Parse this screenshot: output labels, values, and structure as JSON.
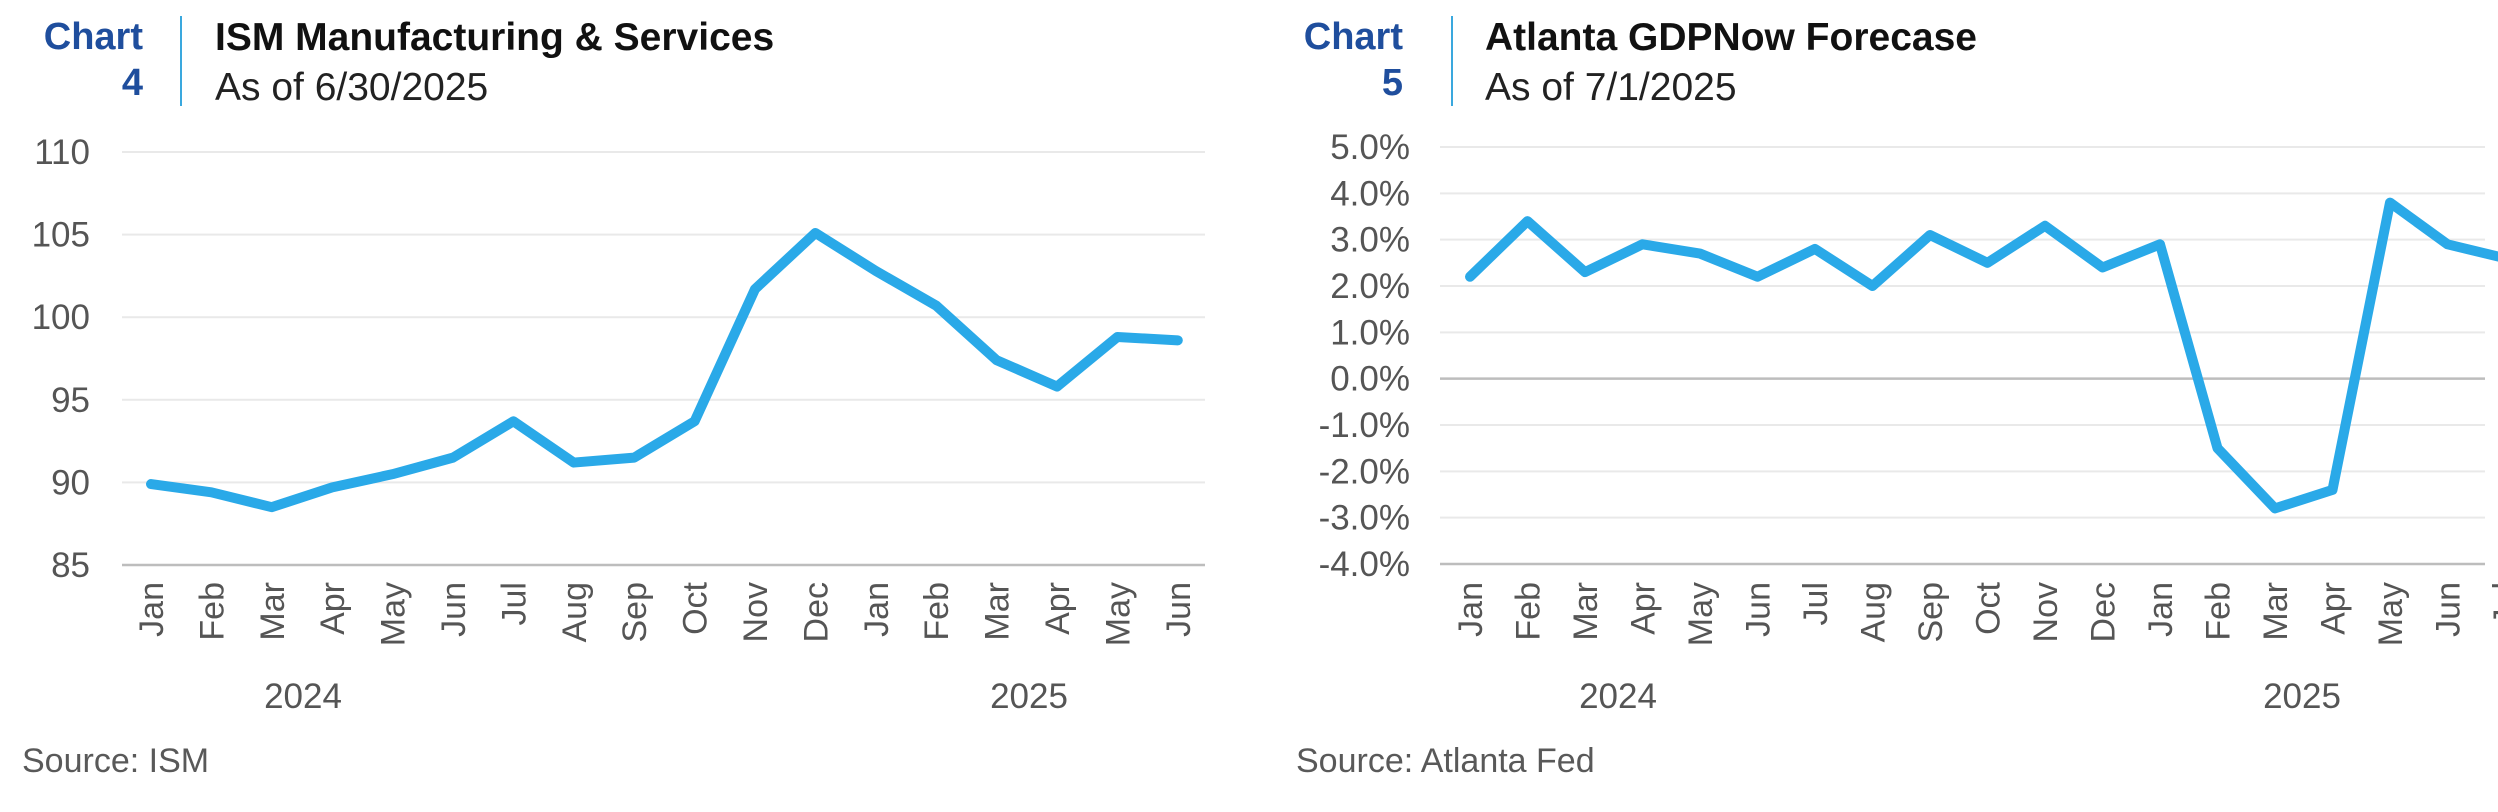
{
  "left": {
    "chart_label_word": "Chart",
    "chart_label_num": "4",
    "title": "ISM Manufacturing & Services",
    "subtitle": "As of 6/30/2025",
    "source": "Source: ISM"
  },
  "right": {
    "chart_label_word": "Chart",
    "chart_label_num": "5",
    "title": "Atlanta GDPNow Forecase",
    "subtitle": "As of 7/1/2025",
    "source": "Source: Atlanta Fed"
  },
  "colors": {
    "line": "#2aa9e8",
    "label": "#1f4e9d",
    "grid": "#e9e9e9",
    "axis": "#bdbdbd"
  },
  "chart_data": [
    {
      "type": "line",
      "title": "ISM Manufacturing & Services",
      "categories": [
        "Jan",
        "Feb",
        "Mar",
        "Apr",
        "May",
        "Jun",
        "Jul",
        "Aug",
        "Sep",
        "Oct",
        "Nov",
        "Dec",
        "Jan",
        "Feb",
        "Mar",
        "Apr",
        "May",
        "Jun"
      ],
      "year_labels": [
        "2024",
        "2025"
      ],
      "series": [
        {
          "values": [
            89.9,
            89.4,
            88.5,
            89.7,
            90.5,
            91.5,
            93.7,
            91.2,
            91.5,
            93.7,
            101.7,
            105.1,
            102.8,
            100.7,
            97.4,
            95.8,
            98.8,
            98.6
          ]
        }
      ],
      "ylim": [
        85,
        110
      ],
      "yticks": [
        85,
        90,
        95,
        100,
        105,
        110
      ],
      "ytick_labels": [
        "85",
        "90",
        "95",
        "100",
        "105",
        "110"
      ],
      "grid": true,
      "xlabel": "",
      "ylabel": ""
    },
    {
      "type": "line",
      "title": "Atlanta GDPNow Forecase",
      "categories": [
        "Jan",
        "Feb",
        "Mar",
        "Apr",
        "May",
        "Jun",
        "Jul",
        "Aug",
        "Sep",
        "Oct",
        "Nov",
        "Dec",
        "Jan",
        "Feb",
        "Mar",
        "Apr",
        "May",
        "Jun",
        "Jul"
      ],
      "year_labels": [
        "2024",
        "2025"
      ],
      "series": [
        {
          "values": [
            2.2,
            3.4,
            2.3,
            2.9,
            2.7,
            2.2,
            2.8,
            2.0,
            3.1,
            2.5,
            3.3,
            2.4,
            2.9,
            -1.5,
            -2.8,
            -2.4,
            3.8,
            2.9,
            2.6
          ]
        }
      ],
      "ylim": [
        -4,
        5
      ],
      "yticks": [
        -4,
        -3,
        -2,
        -1,
        0,
        1,
        2,
        3,
        4,
        5
      ],
      "ytick_labels": [
        "-4.0%",
        "-3.0%",
        "-2.0%",
        "-1.0%",
        "0.0%",
        "1.0%",
        "2.0%",
        "3.0%",
        "4.0%",
        "5.0%"
      ],
      "grid": true,
      "xlabel": "",
      "ylabel": ""
    }
  ]
}
